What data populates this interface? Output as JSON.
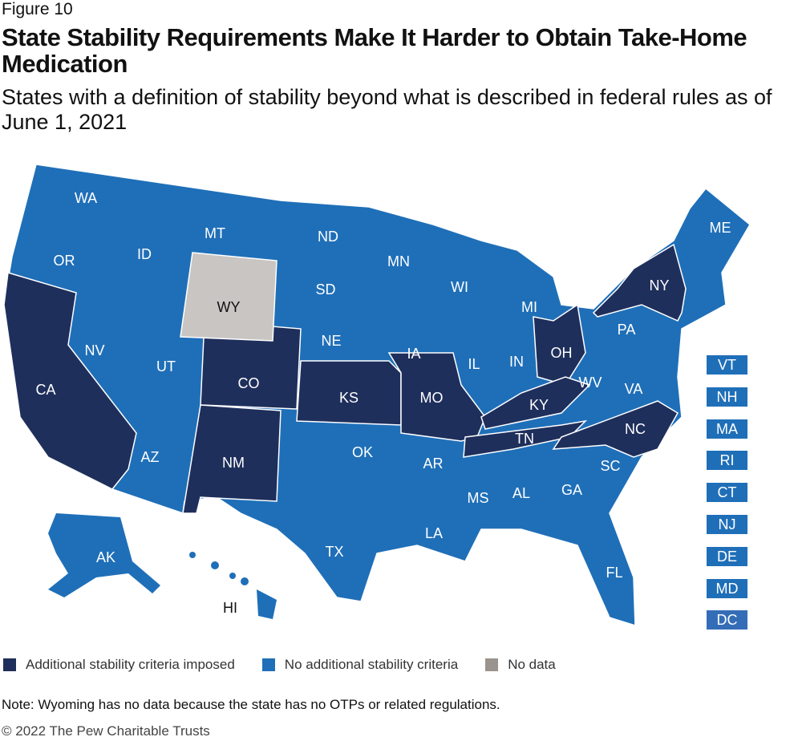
{
  "figure_label": "Figure 10",
  "title": "State Stability Requirements Make It Harder to Obtain Take-Home Medication",
  "subtitle": "States with a definition of stability beyond what is described in federal rules as of June 1, 2021",
  "colors": {
    "imposed": "#1f2f5c",
    "none": "#1f6fb8",
    "nodata": "#c8c5c3",
    "nodata_legend": "#9a938e"
  },
  "states": {
    "imposed": [
      "CA",
      "CO",
      "NM",
      "KS",
      "MO",
      "OH",
      "KY",
      "TN",
      "NC",
      "NY"
    ],
    "none": [
      "WA",
      "OR",
      "ID",
      "MT",
      "NV",
      "UT",
      "AZ",
      "ND",
      "SD",
      "NE",
      "OK",
      "TX",
      "MN",
      "IA",
      "AR",
      "LA",
      "WI",
      "IL",
      "MS",
      "AL",
      "MI",
      "IN",
      "GA",
      "FL",
      "SC",
      "WV",
      "VA",
      "PA",
      "ME",
      "AK",
      "HI",
      "VT",
      "NH",
      "MA",
      "RI",
      "CT",
      "NJ",
      "DE",
      "MD",
      "DC"
    ],
    "nodata": [
      "WY"
    ]
  },
  "small_state_boxes": [
    "VT",
    "NH",
    "MA",
    "RI",
    "CT",
    "NJ",
    "DE",
    "MD",
    "DC"
  ],
  "legend": [
    "Additional stability criteria imposed",
    "No additional stability criteria",
    "No data"
  ],
  "note": "Note: Wyoming has no data because the state has no OTPs or related regulations.",
  "copyright": "© 2022 The Pew Charitable Trusts"
}
